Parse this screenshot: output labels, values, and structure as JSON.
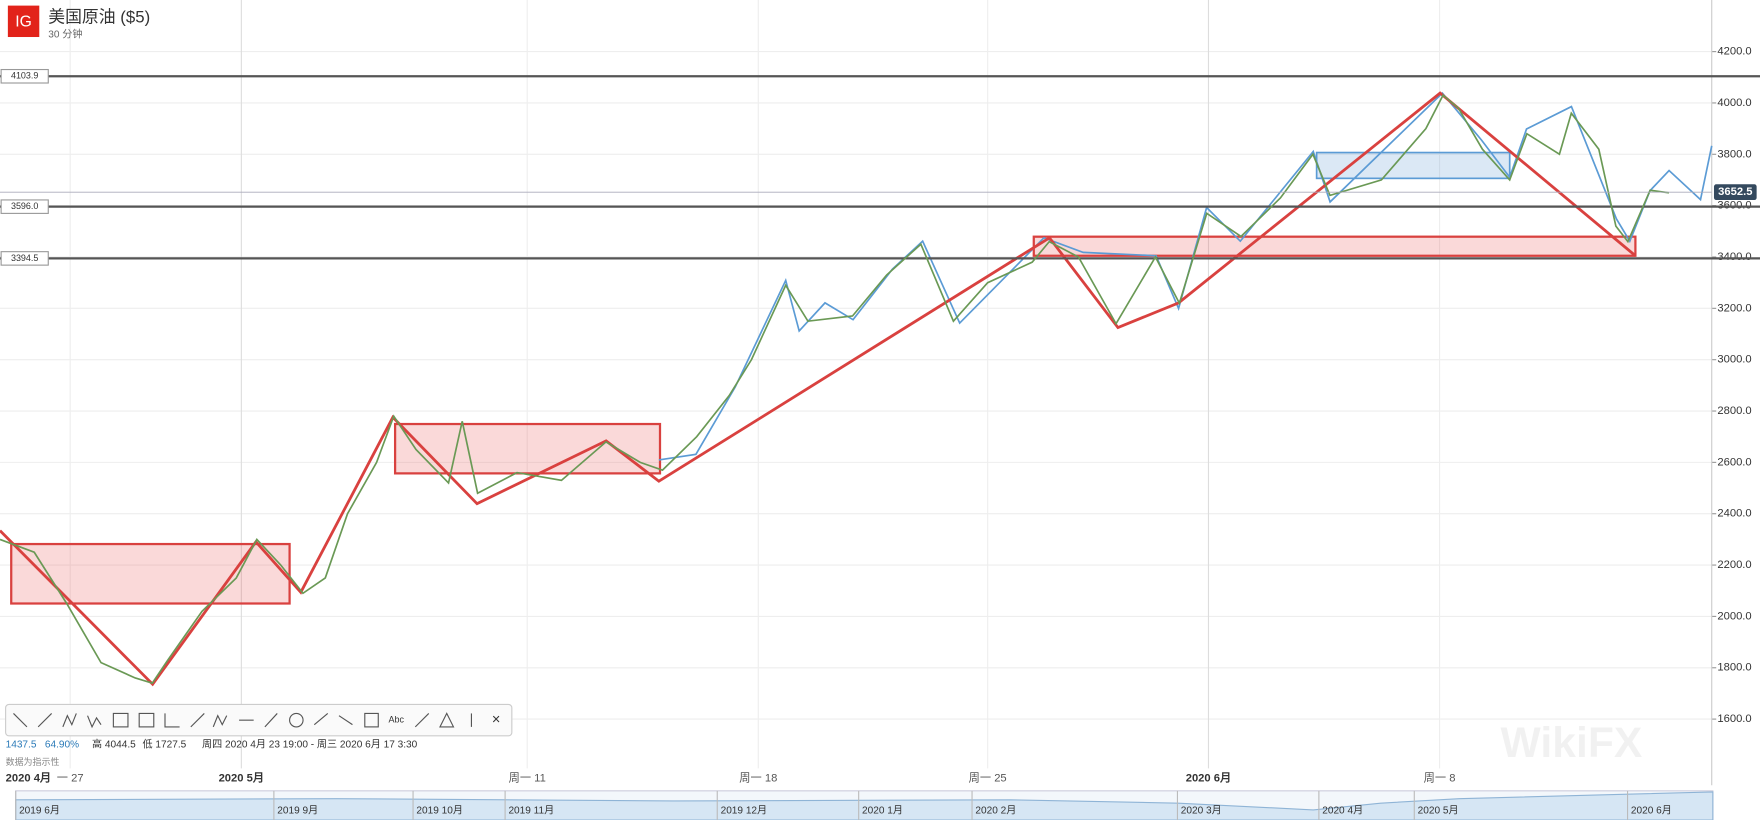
{
  "header": {
    "logo": "IG",
    "title": "美国原油 ($5)",
    "interval": "30 分钟"
  },
  "chart_data": {
    "type": "line",
    "x": [
      0,
      2,
      3.9,
      5.9,
      7.9,
      8.9,
      9.8,
      11.8,
      13.8,
      15,
      16.4,
      17.7,
      19,
      20.3,
      22,
      23,
      24.3,
      26.2,
      27,
      27.9,
      30.2,
      32.8,
      35.4,
      37.4,
      38.7,
      40.7,
      42.6,
      43.9,
      45.9,
      47.2,
      49.8,
      51.8,
      53.8,
      55.7,
      57.7,
      60.3,
      61.3,
      63,
      65.2,
      67.5,
      68.9,
      70.5,
      72.5,
      74.8,
      76.7,
      77.7,
      80.7,
      83.3,
      84.3,
      85.2,
      86.6,
      88.2,
      89.2,
      91.1,
      91.8,
      93.4,
      94.4,
      95.1,
      96.4,
      97.5
    ],
    "series": [
      {
        "name": "美国原油 ($5)",
        "color": "#6a9955",
        "values": [
          2300,
          2250,
          2050,
          1820,
          1760,
          1740,
          1830,
          2020,
          2150,
          2300,
          2200,
          2090,
          2150,
          2400,
          2600,
          2780,
          2650,
          2520,
          2760,
          2480,
          2560,
          2530,
          2680,
          2600,
          2570,
          2700,
          2860,
          3000,
          3290,
          3150,
          3170,
          3330,
          3450,
          3150,
          3300,
          3380,
          3460,
          3400,
          3140,
          3400,
          3220,
          3570,
          3480,
          3630,
          3800,
          3640,
          3700,
          3900,
          4030,
          3980,
          3820,
          3700,
          3880,
          3800,
          3960,
          3820,
          3520,
          3460,
          3660,
          3650
        ]
      }
    ],
    "xlim": [
      0,
      100
    ],
    "ylim": [
      1408,
      4401
    ],
    "yticks": [
      {
        "value": 1600,
        "label": "1600.0"
      },
      {
        "value": 1800,
        "label": "1800.0"
      },
      {
        "value": 2000,
        "label": "2000.0"
      },
      {
        "value": 2200,
        "label": "2200.0"
      },
      {
        "value": 2400,
        "label": "2400.0"
      },
      {
        "value": 2600,
        "label": "2600.0"
      },
      {
        "value": 2800,
        "label": "2800.0"
      },
      {
        "value": 3000,
        "label": "3000.0"
      },
      {
        "value": 3200,
        "label": "3200.0"
      },
      {
        "value": 3400,
        "label": "3400.0"
      },
      {
        "value": 3600,
        "label": "3600.0"
      },
      {
        "value": 3800,
        "label": "3800.0"
      },
      {
        "value": 4000,
        "label": "4000.0"
      },
      {
        "value": 4200,
        "label": "4200.0"
      }
    ],
    "xticks": [
      {
        "value": 0,
        "label": "2020 4月"
      },
      {
        "value": 4.1,
        "label": "一 27"
      },
      {
        "value": 14.1,
        "label": "2020 5月"
      },
      {
        "value": 30.8,
        "label": "周一 11"
      },
      {
        "value": 44.3,
        "label": "周一 18"
      },
      {
        "value": 57.7,
        "label": "周一 25"
      },
      {
        "value": 70.6,
        "label": "2020 6月"
      },
      {
        "value": 84.1,
        "label": "周一 8"
      }
    ],
    "levels": [
      4103.9,
      {
        "value": 3596,
        "label": "3596.0"
      },
      3394.5
    ],
    "last_price": 3652.5,
    "grid": true
  },
  "info": {
    "low_range": "1437.5",
    "pct": "64.90%",
    "high": "高 4044.5",
    "low": "低 1727.5",
    "range": "周四 2020 4月 23 19:00 - 周三 2020 6月 17 3:30",
    "note": "数据为指示性"
  },
  "toolbar": {
    "text_tool": "Abc",
    "close": "×"
  },
  "navigator": {
    "labels": [
      "2019 6月",
      "2019 9月",
      "2019 10月",
      "2019 11月",
      "2019 12月",
      "2020 1月",
      "2020 2月",
      "2020 3月",
      "2020 4月",
      "2020 5月",
      "2020 6月"
    ]
  },
  "watermark": "WikiFX"
}
